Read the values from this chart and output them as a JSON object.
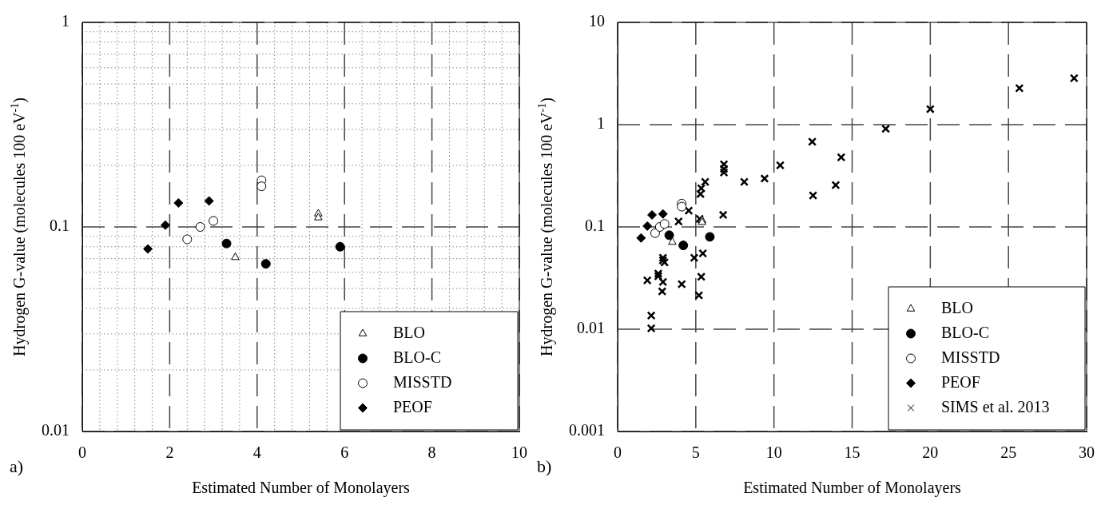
{
  "chart_data": [
    {
      "type": "scatter",
      "xlabel": "Estimated Number of Monolayers",
      "ylabel": "Hydrogen G-value (molecules 100 eV$^{-1}$)",
      "annotations": [
        "a)"
      ],
      "log": "y",
      "grid": true,
      "legend": "bottom right",
      "xlim": [
        0,
        10
      ],
      "ylim": [
        0.01,
        1
      ],
      "xticks": [
        0,
        {
          "value": 0.4,
          "label": null
        },
        {
          "value": 0.8,
          "label": null
        },
        {
          "value": 1.2,
          "label": null
        },
        {
          "value": 1.6,
          "label": null
        },
        2,
        {
          "value": 2.4,
          "label": null
        },
        {
          "value": 2.8,
          "label": null
        },
        {
          "value": 3.2,
          "label": null
        },
        {
          "value": 3.6,
          "label": null
        },
        4,
        {
          "value": 4.4,
          "label": null
        },
        {
          "value": 4.8,
          "label": null
        },
        {
          "value": 5.2,
          "label": null
        },
        {
          "value": 5.6,
          "label": null
        },
        6,
        {
          "value": 6.4,
          "label": null
        },
        {
          "value": 6.8,
          "label": null
        },
        {
          "value": 7.2,
          "label": null
        },
        {
          "value": 7.6,
          "label": null
        },
        8,
        {
          "value": 8.4,
          "label": null
        },
        {
          "value": 8.8,
          "label": null
        },
        {
          "value": 9.2,
          "label": null
        },
        {
          "value": 9.6,
          "label": null
        },
        10
      ],
      "yticks": [
        0.01,
        {
          "value": 0.02,
          "label": null
        },
        {
          "value": 0.03,
          "label": null
        },
        {
          "value": 0.04,
          "label": null
        },
        {
          "value": 0.05,
          "label": null
        },
        {
          "value": 0.06,
          "label": null
        },
        {
          "value": 0.07,
          "label": null
        },
        {
          "value": 0.08,
          "label": null
        },
        {
          "value": 0.09,
          "label": null
        },
        0.1,
        {
          "value": 0.2,
          "label": null
        },
        {
          "value": 0.3,
          "label": null
        },
        {
          "value": 0.4,
          "label": null
        },
        {
          "value": 0.5,
          "label": null
        },
        {
          "value": 0.6,
          "label": null
        },
        {
          "value": 0.7,
          "label": null
        },
        {
          "value": 0.8,
          "label": null
        },
        {
          "value": 0.9,
          "label": null
        },
        1
      ],
      "series": [
        {
          "name": "BLO",
          "color": "#ffffff",
          "marker": "triangle",
          "x": [
            3.5,
            5.4,
            5.4
          ],
          "values": [
            0.071,
            0.116,
            0.111
          ]
        },
        {
          "name": "BLO-C",
          "color": "#000000",
          "marker": "circle",
          "x": [
            3.3,
            4.2,
            5.9
          ],
          "values": [
            0.083,
            0.066,
            0.08
          ]
        },
        {
          "name": "MISSTD",
          "color": "#ffffff",
          "marker": "circle",
          "x": [
            2.4,
            2.7,
            3.0,
            4.1,
            4.1
          ],
          "values": [
            0.087,
            0.1,
            0.107,
            0.169,
            0.158
          ]
        },
        {
          "name": "PEOF",
          "color": "#000000",
          "marker": "diamond",
          "x": [
            1.5,
            1.9,
            2.2,
            2.9
          ],
          "values": [
            0.078,
            0.102,
            0.131,
            0.134
          ]
        }
      ]
    },
    {
      "type": "scatter",
      "xlabel": "Estimated Number of Monolayers",
      "ylabel": "Hydrogen G-value (molecules 100 eV$^{-1}$)",
      "annotations": [
        "b)"
      ],
      "log": "y",
      "grid": true,
      "legend": "bottom right",
      "xlim": [
        0,
        30
      ],
      "ylim": [
        0.001,
        10
      ],
      "xticks": [
        0,
        5,
        10,
        15,
        20,
        25,
        30
      ],
      "yticks": [
        0.001,
        0.01,
        0.1,
        1,
        10
      ],
      "series": [
        {
          "name": "BLO",
          "color": "#ffffff",
          "marker": "triangle",
          "x": [
            3.5,
            5.4,
            5.4
          ],
          "values": [
            0.071,
            0.116,
            0.111
          ]
        },
        {
          "name": "BLO-C",
          "color": "#000000",
          "marker": "circle",
          "x": [
            3.3,
            4.2,
            5.9
          ],
          "values": [
            0.083,
            0.066,
            0.08
          ]
        },
        {
          "name": "MISSTD",
          "color": "#ffffff",
          "marker": "circle",
          "x": [
            2.4,
            2.7,
            3.0,
            4.1,
            4.1
          ],
          "values": [
            0.087,
            0.1,
            0.107,
            0.169,
            0.158
          ]
        },
        {
          "name": "PEOF",
          "color": "#000000",
          "marker": "diamond",
          "x": [
            1.5,
            1.9,
            2.2,
            2.9
          ],
          "values": [
            0.078,
            0.102,
            0.131,
            0.134
          ]
        },
        {
          "name": "SIMS et al. 2013",
          "color": "#000000",
          "marker": "cross",
          "x": [
            2.15,
            2.15,
            1.9,
            2.6,
            2.6,
            2.9,
            2.9,
            3.0,
            2.9,
            2.85,
            3.9,
            4.55,
            4.1,
            4.9,
            5.45,
            5.35,
            5.2,
            5.25,
            5.3,
            5.35,
            5.6,
            6.75,
            6.8,
            6.8,
            6.8,
            8.1,
            9.4,
            10.4,
            12.45,
            12.5,
            13.95,
            14.3,
            17.15,
            20.0,
            25.7,
            29.2
          ],
          "values": [
            0.0136,
            0.0102,
            0.03,
            0.035,
            0.033,
            0.047,
            0.05,
            0.045,
            0.029,
            0.0234,
            0.113,
            0.144,
            0.0276,
            0.05,
            0.055,
            0.0325,
            0.0214,
            0.12,
            0.21,
            0.239,
            0.276,
            0.131,
            0.41,
            0.37,
            0.34,
            0.276,
            0.297,
            0.4,
            0.68,
            0.203,
            0.257,
            0.48,
            0.91,
            1.42,
            2.27,
            2.85
          ]
        }
      ]
    }
  ]
}
